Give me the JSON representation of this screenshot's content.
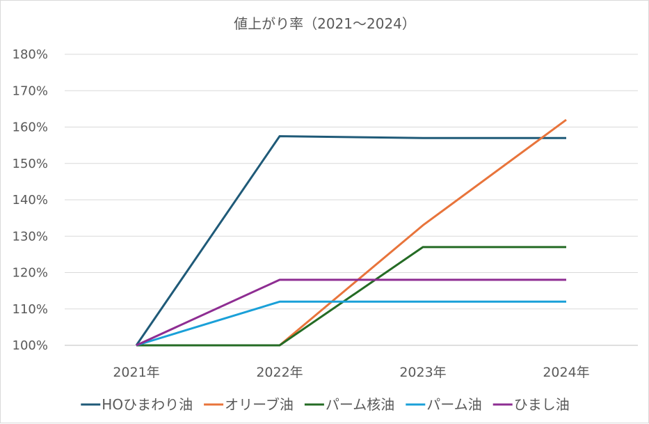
{
  "chart_data": {
    "type": "line",
    "title": "値上がり率（2021～2024）",
    "categories": [
      "2021年",
      "2022年",
      "2023年",
      "2024年"
    ],
    "ylim": [
      100,
      180
    ],
    "yticks": [
      100,
      110,
      120,
      130,
      140,
      150,
      160,
      170,
      180
    ],
    "ytick_labels": [
      "100%",
      "110%",
      "120%",
      "130%",
      "140%",
      "150%",
      "160%",
      "170%",
      "180%"
    ],
    "grid": true,
    "legend_position": "bottom",
    "series": [
      {
        "name": "HOひまわり油",
        "color": "#1f5a78",
        "values": [
          100,
          157.5,
          157,
          157
        ]
      },
      {
        "name": "オリーブ油",
        "color": "#e8743b",
        "values": [
          100,
          100,
          133,
          162
        ]
      },
      {
        "name": "パーム核油",
        "color": "#246b24",
        "values": [
          100,
          100,
          127,
          127
        ]
      },
      {
        "name": "パーム油",
        "color": "#1aa0d8",
        "values": [
          100,
          112,
          112,
          112
        ]
      },
      {
        "name": "ひまし油",
        "color": "#8e2d92",
        "values": [
          100,
          118,
          118,
          118
        ]
      }
    ]
  }
}
